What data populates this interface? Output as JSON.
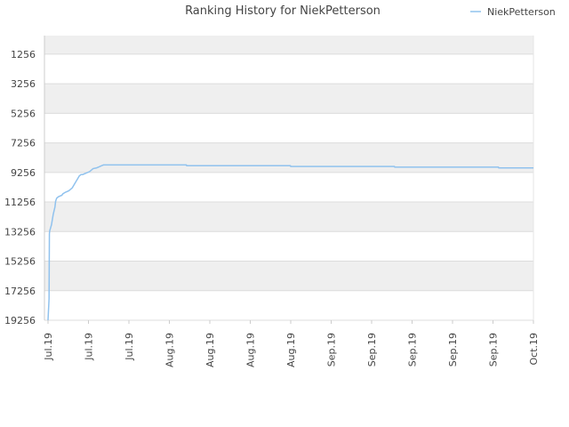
{
  "chart_data": {
    "type": "line",
    "title": "Ranking History for NiekPetterson",
    "xlabel": "",
    "ylabel": "",
    "y_inverted": true,
    "ylim": [
      19256,
      0
    ],
    "y_ticks": [
      "1256",
      "3256",
      "5256",
      "7256",
      "9256",
      "11256",
      "13256",
      "15256",
      "17256",
      "19256"
    ],
    "x_ticks": [
      "Jul.19",
      "Jul.19",
      "Jul.19",
      "Aug.19",
      "Aug.19",
      "Aug.19",
      "Aug.19",
      "Sep.19",
      "Sep.19",
      "Sep.19",
      "Sep.19",
      "Sep.19",
      "Oct.19"
    ],
    "grid": true,
    "legend_position": "top-right",
    "series": [
      {
        "name": "NiekPetterson",
        "color": "#90c2ee",
        "x": [
          0.0,
          0.2,
          0.3,
          0.4,
          0.5,
          1.0,
          1.5,
          2.0,
          2.2,
          2.5,
          3.0,
          4.0,
          4.3,
          5.0,
          6.0,
          7.0,
          8.0,
          8.5,
          9.0,
          9.5,
          10.0,
          12.0,
          13.0,
          14.0,
          14.5,
          15.0,
          15.5,
          16.0,
          18.0,
          20.0,
          25.0,
          30.0,
          39.9,
          40.0,
          60.0,
          69.9,
          70.0,
          90.0,
          99.9,
          100.0,
          120.0,
          129.9,
          130.0,
          140.0
        ],
        "y": [
          19256,
          18300,
          17800,
          13400,
          13200,
          12800,
          12100,
          11600,
          11200,
          11000,
          10900,
          10800,
          10700,
          10600,
          10500,
          10300,
          9900,
          9700,
          9500,
          9400,
          9400,
          9200,
          9000,
          8950,
          8900,
          8850,
          8800,
          8750,
          8750,
          8750,
          8750,
          8750,
          8750,
          8800,
          8800,
          8800,
          8850,
          8850,
          8850,
          8900,
          8900,
          8900,
          8950,
          8950
        ]
      }
    ]
  }
}
